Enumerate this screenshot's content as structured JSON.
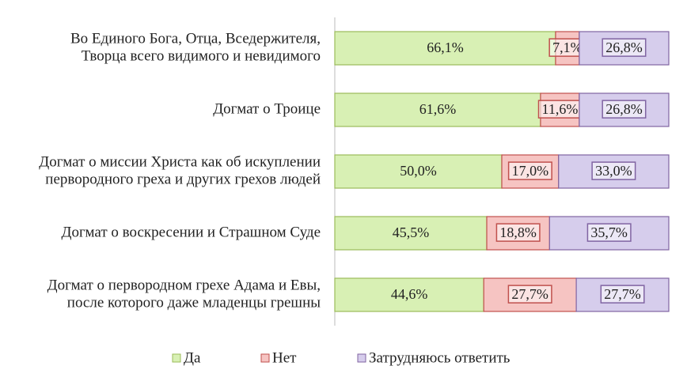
{
  "chart_data": {
    "type": "stacked-bar-horizontal",
    "categories": [
      [
        "Во Единого Бога, Отца, Вседержителя,",
        "Творца всего видимого и невидимого"
      ],
      [
        "Догмат о Троице"
      ],
      [
        "Догмат о миссии Христа как об искуплении",
        "первородного греха и других грехов людей"
      ],
      [
        "Догмат о воскресении и Страшном Суде"
      ],
      [
        "Догмат о первородном грехе Адама и Евы,",
        "после которого даже младенцы грешны"
      ]
    ],
    "series": [
      {
        "name": "Да",
        "color": "#d8f0b4",
        "border": "#9bbb59",
        "values": [
          66.1,
          61.6,
          50.0,
          45.5,
          44.6
        ],
        "value_labels": [
          "66,1%",
          "61,6%",
          "50,0%",
          "45,5%",
          "44,6%"
        ]
      },
      {
        "name": "Нет",
        "color": "#f6c4c2",
        "border": "#c0504d",
        "values": [
          7.1,
          11.6,
          17.0,
          18.8,
          27.7
        ],
        "value_labels": [
          "7,1%",
          "11,6%",
          "17,0%",
          "18,8%",
          "27,7%"
        ]
      },
      {
        "name": "Затрудняюсь ответить",
        "color": "#d6cdec",
        "border": "#8064a2",
        "values": [
          26.8,
          26.8,
          33.0,
          35.7,
          27.7
        ],
        "value_labels": [
          "26,8%",
          "26,8%",
          "33,0%",
          "35,7%",
          "27,7%"
        ]
      }
    ],
    "xlim": [
      0,
      100
    ]
  }
}
